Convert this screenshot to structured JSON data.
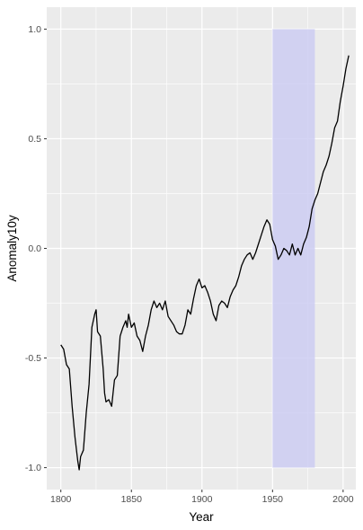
{
  "chart_data": {
    "type": "line",
    "title": "",
    "xlabel": "Year",
    "ylabel": "Anomaly10y",
    "xlim": [
      1790,
      2009
    ],
    "ylim": [
      -1.1,
      1.1
    ],
    "x_ticks": [
      1800,
      1850,
      1900,
      1950,
      2000
    ],
    "x_tick_labels": [
      "1800",
      "1850",
      "1900",
      "1950",
      "2000"
    ],
    "y_ticks": [
      -1.0,
      -0.5,
      0.0,
      0.5,
      1.0
    ],
    "y_tick_labels": [
      "-1.0",
      "-0.5",
      "0.0",
      "0.5",
      "1.0"
    ],
    "grid": true,
    "highlight": {
      "x": [
        1950,
        1980
      ],
      "y": [
        -1.0,
        1.0
      ],
      "color": "#c8c8f0"
    },
    "colors": {
      "panel": "#ebebeb",
      "grid": "#ffffff",
      "line": "#000000",
      "highlight": "#ccccf2"
    },
    "series": [
      {
        "x": [
          1800,
          1802,
          1804,
          1806,
          1808,
          1810,
          1812,
          1813,
          1814,
          1816,
          1818,
          1820,
          1822,
          1824,
          1825,
          1826,
          1828,
          1830,
          1831,
          1832,
          1834,
          1836,
          1837,
          1838,
          1840,
          1842,
          1843,
          1844,
          1846,
          1847,
          1848,
          1850,
          1852,
          1854,
          1856,
          1858,
          1860,
          1862,
          1864,
          1866,
          1868,
          1870,
          1872,
          1874,
          1876,
          1878,
          1880,
          1882,
          1884,
          1886,
          1888,
          1890,
          1892,
          1894,
          1896,
          1898,
          1900,
          1902,
          1904,
          1906,
          1908,
          1910,
          1912,
          1914,
          1916,
          1918,
          1920,
          1922,
          1924,
          1926,
          1928,
          1930,
          1932,
          1934,
          1936,
          1938,
          1940,
          1942,
          1944,
          1946,
          1948,
          1950,
          1952,
          1954,
          1956,
          1958,
          1960,
          1962,
          1964,
          1966,
          1968,
          1970,
          1972,
          1974,
          1976,
          1978,
          1980,
          1982,
          1984,
          1986,
          1988,
          1990,
          1992,
          1994,
          1996,
          1998,
          2000,
          2002,
          2004
        ],
        "y": [
          -0.44,
          -0.46,
          -0.53,
          -0.55,
          -0.72,
          -0.86,
          -0.97,
          -1.01,
          -0.95,
          -0.92,
          -0.75,
          -0.62,
          -0.36,
          -0.3,
          -0.28,
          -0.38,
          -0.4,
          -0.55,
          -0.66,
          -0.7,
          -0.69,
          -0.72,
          -0.66,
          -0.6,
          -0.58,
          -0.4,
          -0.38,
          -0.36,
          -0.33,
          -0.36,
          -0.3,
          -0.36,
          -0.34,
          -0.4,
          -0.42,
          -0.47,
          -0.4,
          -0.35,
          -0.28,
          -0.24,
          -0.27,
          -0.25,
          -0.28,
          -0.24,
          -0.31,
          -0.33,
          -0.35,
          -0.38,
          -0.39,
          -0.39,
          -0.35,
          -0.28,
          -0.3,
          -0.23,
          -0.17,
          -0.14,
          -0.18,
          -0.17,
          -0.2,
          -0.24,
          -0.3,
          -0.33,
          -0.26,
          -0.24,
          -0.25,
          -0.27,
          -0.22,
          -0.19,
          -0.17,
          -0.13,
          -0.08,
          -0.05,
          -0.03,
          -0.02,
          -0.05,
          -0.02,
          0.02,
          0.06,
          0.1,
          0.13,
          0.11,
          0.04,
          0.01,
          -0.05,
          -0.03,
          0.0,
          -0.01,
          -0.03,
          0.02,
          -0.03,
          0.0,
          -0.03,
          0.02,
          0.05,
          0.1,
          0.18,
          0.22,
          0.25,
          0.3,
          0.35,
          0.38,
          0.42,
          0.48,
          0.55,
          0.58,
          0.67,
          0.74,
          0.82,
          0.88
        ]
      }
    ]
  }
}
